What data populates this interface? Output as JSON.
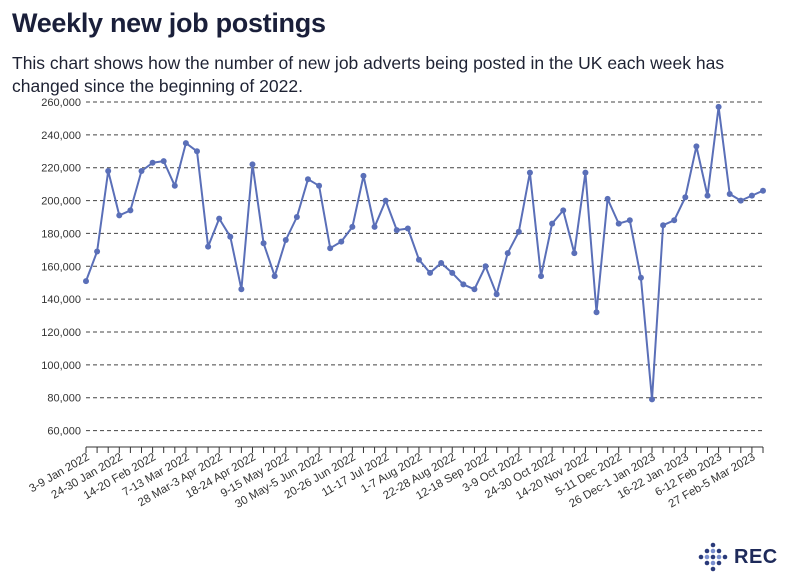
{
  "header": {
    "title": "Weekly new job postings",
    "subtitle": "This chart shows how the number of new job adverts being posted in the UK each week has changed since the beginning of 2022."
  },
  "brand": {
    "logo_text": "REC",
    "color": "#2a3a7a"
  },
  "chart_data": {
    "type": "line",
    "title": "Weekly new job postings",
    "xlabel": "",
    "ylabel": "",
    "ylim": [
      50000,
      260000
    ],
    "yticks": [
      60000,
      80000,
      100000,
      120000,
      140000,
      160000,
      180000,
      200000,
      220000,
      240000,
      260000
    ],
    "ytick_labels": [
      "60,000",
      "80,000",
      "100,000",
      "120,000",
      "140,000",
      "160,000",
      "180,000",
      "200,000",
      "220,000",
      "240,000",
      "260,000"
    ],
    "grid": "horizontal dashed",
    "line_color": "#5a6fb8",
    "xtick_labels": [
      {
        "index": 0,
        "label": "3-9 Jan 2022"
      },
      {
        "index": 3,
        "label": "24-30 Jan 2022"
      },
      {
        "index": 6,
        "label": "14-20 Feb 2022"
      },
      {
        "index": 9,
        "label": "7-13 Mar 2022"
      },
      {
        "index": 12,
        "label": "28 Mar-3 Apr 2022"
      },
      {
        "index": 15,
        "label": "18-24 Apr 2022"
      },
      {
        "index": 18,
        "label": "9-15 May 2022"
      },
      {
        "index": 21,
        "label": "30 May-5 Jun 2022"
      },
      {
        "index": 24,
        "label": "20-26 Jun 2022"
      },
      {
        "index": 27,
        "label": "11-17 Jul 2022"
      },
      {
        "index": 30,
        "label": "1-7 Aug 2022"
      },
      {
        "index": 33,
        "label": "22-28 Aug 2022"
      },
      {
        "index": 36,
        "label": "12-18 Sep 2022"
      },
      {
        "index": 39,
        "label": "3-9 Oct 2022"
      },
      {
        "index": 42,
        "label": "24-30 Oct 2022"
      },
      {
        "index": 45,
        "label": "14-20 Nov 2022"
      },
      {
        "index": 48,
        "label": "5-11 Dec 2022"
      },
      {
        "index": 51,
        "label": "26 Dec-1 Jan 2023"
      },
      {
        "index": 54,
        "label": "16-22 Jan 2023"
      },
      {
        "index": 57,
        "label": "6-12 Feb 2023"
      },
      {
        "index": 60,
        "label": "27 Feb-5 Mar 2023"
      }
    ],
    "series": [
      {
        "name": "New job postings",
        "values": [
          151000,
          169000,
          218000,
          191000,
          194000,
          218000,
          223000,
          224000,
          209000,
          235000,
          230000,
          172000,
          189000,
          178000,
          146000,
          222000,
          174000,
          154000,
          176000,
          190000,
          213000,
          209000,
          171000,
          175000,
          184000,
          215000,
          184000,
          200000,
          182000,
          183000,
          164000,
          156000,
          162000,
          156000,
          149000,
          146000,
          160000,
          143000,
          168000,
          181000,
          217000,
          154000,
          186000,
          194000,
          168000,
          217000,
          132000,
          201000,
          186000,
          188000,
          153000,
          79000,
          185000,
          188000,
          202000,
          233000,
          203000,
          257000,
          204000,
          200000,
          203000,
          206000
        ]
      }
    ]
  }
}
